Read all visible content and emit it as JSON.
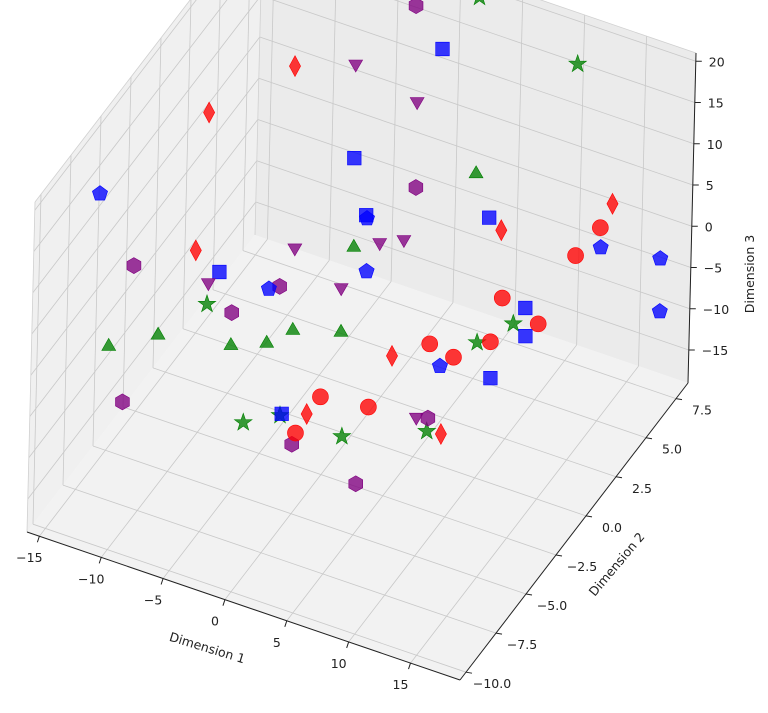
{
  "chart_data": {
    "type": "scatter",
    "projection": "3d",
    "title": "",
    "xlabel": "Dimension 1",
    "ylabel": "Dimension 2",
    "zlabel": "Dimension 3",
    "xlim": [
      -16,
      19
    ],
    "ylim": [
      -10.5,
      8.5
    ],
    "zlim": [
      -19,
      21
    ],
    "x_ticks": [
      -15,
      -10,
      -5,
      0,
      5,
      10,
      15
    ],
    "y_ticks": [
      -10.0,
      -7.5,
      -5.0,
      -2.5,
      0.0,
      2.5,
      5.0,
      7.5
    ],
    "y_tick_labels": [
      "−10.0",
      "−7.5",
      "−5.0",
      "−2.5",
      "0.0",
      "2.5",
      "5.0",
      "7.5"
    ],
    "x_tick_labels": [
      "−15",
      "−10",
      "−5",
      "0",
      "5",
      "10",
      "15"
    ],
    "z_ticks": [
      -15,
      -10,
      -5,
      0,
      5,
      10,
      15,
      20
    ],
    "z_tick_labels": [
      "−15",
      "−10",
      "−5",
      "0",
      "5",
      "10",
      "15",
      "20"
    ],
    "grid": true,
    "legend": "none",
    "series": [
      {
        "marker": "circle",
        "color": "#ff0000",
        "points": [
          [
            3,
            -8,
            -2
          ],
          [
            4,
            -7,
            1
          ],
          [
            8,
            -2,
            0
          ],
          [
            9,
            -1,
            -3
          ],
          [
            10,
            2,
            -1
          ],
          [
            11,
            0,
            -2
          ],
          [
            12,
            3,
            -5
          ],
          [
            13,
            5,
            0
          ],
          [
            14,
            6,
            2
          ],
          [
            6,
            -5,
            -3
          ]
        ]
      },
      {
        "marker": "diamond",
        "color": "#ff0000",
        "points": [
          [
            -12,
            0,
            14
          ],
          [
            -8,
            3,
            16
          ],
          [
            -3,
            9,
            19
          ],
          [
            -10,
            -3,
            4
          ],
          [
            5,
            -2,
            -3
          ],
          [
            7,
            5,
            0
          ],
          [
            10,
            -3,
            -8
          ],
          [
            2,
            -6,
            -4
          ],
          [
            14,
            7,
            3
          ]
        ]
      },
      {
        "marker": "square",
        "color": "#0000ff",
        "points": [
          [
            1,
            6,
            17
          ],
          [
            -9,
            -2,
            0
          ],
          [
            -4,
            4,
            5
          ],
          [
            0,
            -6,
            -5
          ],
          [
            6,
            5,
            1
          ],
          [
            10,
            4,
            -6
          ],
          [
            11,
            3,
            -7
          ],
          [
            12,
            -1,
            -4
          ],
          [
            -2,
            3,
            1
          ]
        ]
      },
      {
        "marker": "pentagon",
        "color": "#0000ff",
        "points": [
          [
            -15,
            -6,
            14
          ],
          [
            -5,
            -2,
            0
          ],
          [
            -1,
            2,
            3
          ],
          [
            0,
            1,
            -1
          ],
          [
            7,
            0,
            -7
          ],
          [
            15,
            5,
            2
          ],
          [
            17,
            8,
            -4
          ],
          [
            18,
            7,
            -8
          ]
        ]
      },
      {
        "marker": "triangle-down",
        "color": "#800080",
        "points": [
          [
            -5,
            5,
            14
          ],
          [
            0,
            5,
            12
          ],
          [
            -8,
            -4,
            3
          ],
          [
            -3,
            -2,
            6
          ],
          [
            1,
            1,
            3
          ],
          [
            2,
            2,
            2
          ],
          [
            8,
            -3,
            -7
          ],
          [
            -2,
            1,
            -4
          ]
        ]
      },
      {
        "marker": "hexagon",
        "color": "#800080",
        "points": [
          [
            -4,
            9,
            14
          ],
          [
            -14,
            -4,
            2
          ],
          [
            -7,
            -3,
            -2
          ],
          [
            -6,
            0,
            -4
          ],
          [
            -10,
            -9,
            -3
          ],
          [
            1,
            4,
            4
          ],
          [
            7,
            -7,
            -8
          ],
          [
            -1,
            -4,
            -13
          ],
          [
            8,
            -2,
            -9
          ]
        ]
      },
      {
        "marker": "triangle",
        "color": "#008000",
        "points": [
          [
            -14,
            -6,
            -4
          ],
          [
            -11,
            -5,
            -3
          ],
          [
            -7,
            -3,
            -6
          ],
          [
            -3,
            -2,
            -4
          ],
          [
            -1,
            0,
            -7
          ],
          [
            -2,
            2,
            -1
          ],
          [
            -6,
            -1,
            -9
          ],
          [
            3,
            7,
            1
          ]
        ]
      },
      {
        "marker": "star",
        "color": "#008000",
        "points": [
          [
            2,
            8,
            20
          ],
          [
            10,
            8,
            16
          ],
          [
            -9,
            -3,
            -2
          ],
          [
            -4,
            -5,
            -10
          ],
          [
            -2,
            -4,
            -10
          ],
          [
            3,
            -4,
            -10
          ],
          [
            9,
            1,
            -5
          ],
          [
            10,
            3,
            -6
          ],
          [
            7,
            -1,
            -13
          ]
        ]
      }
    ]
  }
}
